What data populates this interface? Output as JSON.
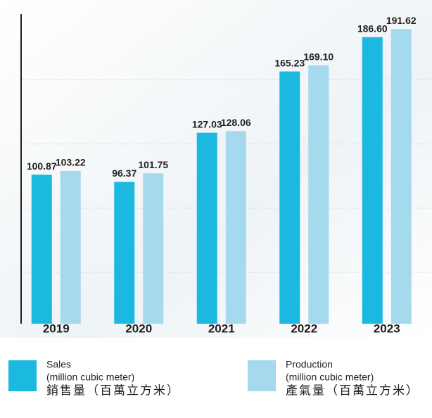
{
  "chart_data": {
    "type": "bar",
    "categories": [
      "2019",
      "2020",
      "2021",
      "2022",
      "2023"
    ],
    "series": [
      {
        "name": "Sales",
        "unit": "(million cubic meter)",
        "name_zh": "銷售量（百萬立方米）",
        "color": "#1bb8df",
        "values": [
          100.87,
          96.37,
          127.03,
          165.23,
          186.6
        ],
        "value_labels": [
          "100.87",
          "96.37",
          "127.03",
          "165.23",
          "186.60"
        ]
      },
      {
        "name": "Production",
        "unit": "(million cubic meter)",
        "name_zh": "產氣量（百萬立方米）",
        "color": "#a4d9ee",
        "values": [
          103.22,
          101.75,
          128.06,
          169.1,
          191.62
        ],
        "value_labels": [
          "103.22",
          "101.75",
          "128.06",
          "169.10",
          "191.62"
        ]
      }
    ],
    "ylim": [
      8,
      201
    ],
    "yticks": [
      40,
      80,
      120,
      160
    ],
    "grid": true
  }
}
